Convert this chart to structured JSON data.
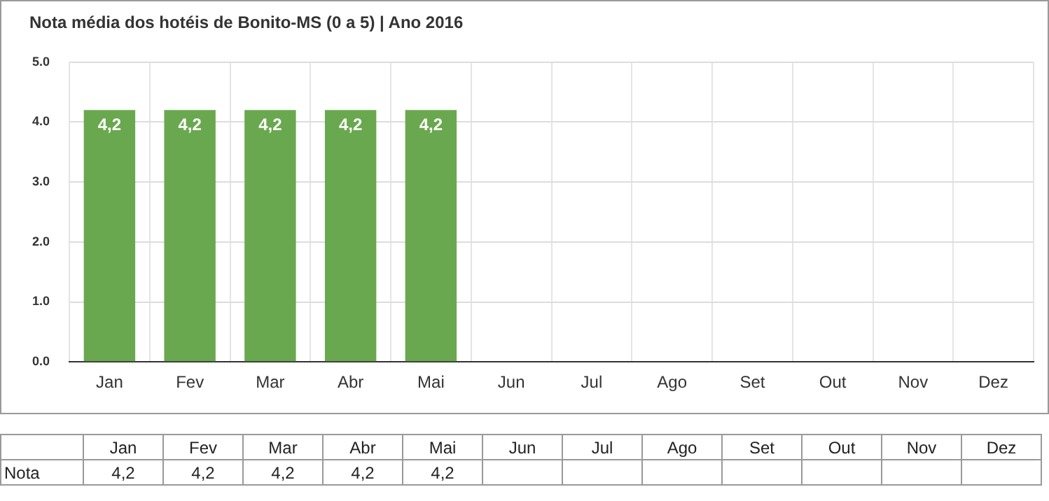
{
  "chart_data": {
    "type": "bar",
    "title": "Nota média dos hotéis de Bonito-MS (0 a 5) | Ano 2016",
    "categories": [
      "Jan",
      "Fev",
      "Mar",
      "Abr",
      "Mai",
      "Jun",
      "Jul",
      "Ago",
      "Set",
      "Out",
      "Nov",
      "Dez"
    ],
    "series": [
      {
        "name": "Nota",
        "color": "#6aa84f",
        "values": [
          4.2,
          4.2,
          4.2,
          4.2,
          4.2,
          null,
          null,
          null,
          null,
          null,
          null,
          null
        ],
        "value_labels": [
          "4,2",
          "4,2",
          "4,2",
          "4,2",
          "4,2",
          null,
          null,
          null,
          null,
          null,
          null,
          null
        ]
      }
    ],
    "ylim": [
      0,
      5
    ],
    "yticks": [
      {
        "value": 0,
        "label": "0.0"
      },
      {
        "value": 1,
        "label": "1.0"
      },
      {
        "value": 2,
        "label": "2.0"
      },
      {
        "value": 3,
        "label": "3.0"
      },
      {
        "value": 4,
        "label": "4.0"
      },
      {
        "value": 5,
        "label": "5.0"
      }
    ],
    "grid": true,
    "legend": false
  }
}
